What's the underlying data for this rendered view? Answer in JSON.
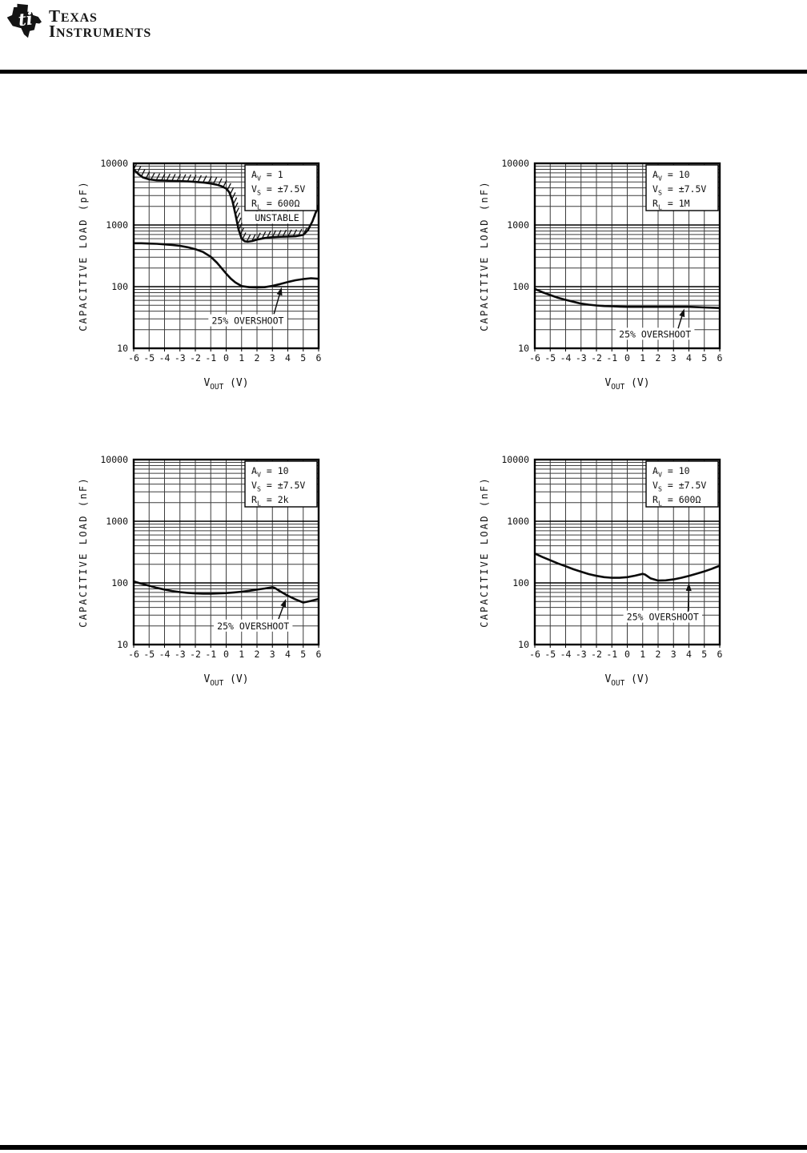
{
  "header": {
    "logo_line1": "TEXAS",
    "logo_line2": "INSTRUMENTS",
    "logo_glyph": "ti"
  },
  "colors": {
    "ink": "#111111",
    "grid_minor": "#3c3c3c",
    "grid_major": "#000000",
    "paper": "#ffffff"
  },
  "chart_data": [
    {
      "type": "line",
      "title": "",
      "ylabel": "CAPACITIVE LOAD (pF)",
      "xlabel": {
        "main": "V",
        "sub": "OUT",
        "rest": " (V)"
      },
      "xlim": [
        -6,
        6
      ],
      "ylim": [
        10,
        10000
      ],
      "yscale": "log",
      "x_ticks": [
        -6,
        -5,
        -4,
        -3,
        -2,
        -1,
        0,
        1,
        2,
        3,
        4,
        5,
        6
      ],
      "y_ticks": [
        10,
        100,
        1000,
        10000
      ],
      "grid": "full log grid on",
      "legend_position": "boxed, top-right inside plot",
      "conditions": [
        {
          "main": "A",
          "sub": "V",
          "rest": " = 1"
        },
        {
          "main": "V",
          "sub": "S",
          "rest": " = ±7.5V"
        },
        {
          "main": "R",
          "sub": "L",
          "rest": " = 600Ω"
        }
      ],
      "series": [
        {
          "name": "stability boundary (unstable above, hatched)",
          "hatched": true,
          "points": [
            [
              -6,
              8000
            ],
            [
              -5.7,
              6700
            ],
            [
              -5.4,
              5900
            ],
            [
              -5,
              5500
            ],
            [
              -4.5,
              5300
            ],
            [
              -4,
              5250
            ],
            [
              -3.5,
              5200
            ],
            [
              -3,
              5150
            ],
            [
              -2.5,
              5100
            ],
            [
              -2,
              5000
            ],
            [
              -1.5,
              4900
            ],
            [
              -1,
              4700
            ],
            [
              -0.6,
              4500
            ],
            [
              -0.3,
              4250
            ],
            [
              0,
              3900
            ],
            [
              0.2,
              3400
            ],
            [
              0.4,
              2500
            ],
            [
              0.6,
              1500
            ],
            [
              0.8,
              850
            ],
            [
              1,
              600
            ],
            [
              1.2,
              545
            ],
            [
              1.4,
              535
            ],
            [
              1.7,
              550
            ],
            [
              2,
              580
            ],
            [
              2.5,
              615
            ],
            [
              3,
              635
            ],
            [
              3.5,
              645
            ],
            [
              4,
              650
            ],
            [
              4.5,
              655
            ],
            [
              5,
              690
            ],
            [
              5.3,
              820
            ],
            [
              5.6,
              1150
            ],
            [
              5.85,
              1700
            ],
            [
              6,
              2100
            ]
          ]
        },
        {
          "name": "25% overshoot",
          "hatched": false,
          "points": [
            [
              -6,
              505
            ],
            [
              -5.5,
              505
            ],
            [
              -5,
              500
            ],
            [
              -4.5,
              495
            ],
            [
              -4,
              485
            ],
            [
              -3.5,
              475
            ],
            [
              -3,
              460
            ],
            [
              -2.5,
              435
            ],
            [
              -2,
              405
            ],
            [
              -1.5,
              365
            ],
            [
              -1,
              305
            ],
            [
              -0.6,
              245
            ],
            [
              -0.3,
              200
            ],
            [
              0,
              163
            ],
            [
              0.3,
              135
            ],
            [
              0.6,
              117
            ],
            [
              1,
              102
            ],
            [
              1.5,
              98
            ],
            [
              2,
              97
            ],
            [
              2.5,
              98
            ],
            [
              3,
              103
            ],
            [
              3.5,
              110
            ],
            [
              4,
              119
            ],
            [
              4.5,
              127
            ],
            [
              5,
              133
            ],
            [
              5.5,
              137
            ],
            [
              6,
              134
            ]
          ]
        }
      ],
      "labels": [
        {
          "text": "UNSTABLE",
          "x": 3.3,
          "y": 1300
        },
        {
          "text": "25% OVERSHOOT",
          "x": 1.4,
          "y": 28
        }
      ],
      "arrow": {
        "x1": 3.1,
        "y1": 36,
        "x2": 3.6,
        "y2": 98
      }
    },
    {
      "type": "line",
      "title": "",
      "ylabel": "CAPACITIVE LOAD (nF)",
      "xlabel": {
        "main": "V",
        "sub": "OUT",
        "rest": " (V)"
      },
      "xlim": [
        -6,
        6
      ],
      "ylim": [
        10,
        10000
      ],
      "yscale": "log",
      "x_ticks": [
        -6,
        -5,
        -4,
        -3,
        -2,
        -1,
        0,
        1,
        2,
        3,
        4,
        5,
        6
      ],
      "y_ticks": [
        10,
        100,
        1000,
        10000
      ],
      "grid": "full log grid on",
      "legend_position": "boxed, top-right inside plot",
      "conditions": [
        {
          "main": "A",
          "sub": "V",
          "rest": " = 10"
        },
        {
          "main": "V",
          "sub": "S",
          "rest": " = ±7.5V"
        },
        {
          "main": "R",
          "sub": "L",
          "rest": " = 1M"
        }
      ],
      "series": [
        {
          "name": "25% overshoot",
          "hatched": false,
          "points": [
            [
              -6,
              92
            ],
            [
              -5.5,
              81
            ],
            [
              -5,
              73
            ],
            [
              -4.5,
              66
            ],
            [
              -4,
              61
            ],
            [
              -3.5,
              57
            ],
            [
              -3,
              53
            ],
            [
              -2.5,
              51
            ],
            [
              -2,
              49.5
            ],
            [
              -1.5,
              48.5
            ],
            [
              -1,
              48
            ],
            [
              -0.5,
              47.5
            ],
            [
              0,
              47
            ],
            [
              0.5,
              47
            ],
            [
              1,
              47
            ],
            [
              1.5,
              47
            ],
            [
              2,
              47
            ],
            [
              2.5,
              47
            ],
            [
              3,
              47
            ],
            [
              3.5,
              47
            ],
            [
              4,
              47
            ],
            [
              4.5,
              46.5
            ],
            [
              5,
              46
            ],
            [
              5.5,
              45.5
            ],
            [
              6,
              45
            ]
          ]
        }
      ],
      "labels": [
        {
          "text": "25% OVERSHOOT",
          "x": 1.8,
          "y": 17
        }
      ],
      "arrow": {
        "x1": 3.3,
        "y1": 21,
        "x2": 3.7,
        "y2": 44
      }
    },
    {
      "type": "line",
      "title": "",
      "ylabel": "CAPACITIVE LOAD (nF)",
      "xlabel": {
        "main": "V",
        "sub": "OUT",
        "rest": " (V)"
      },
      "xlim": [
        -6,
        6
      ],
      "ylim": [
        10,
        10000
      ],
      "yscale": "log",
      "x_ticks": [
        -6,
        -5,
        -4,
        -3,
        -2,
        -1,
        0,
        1,
        2,
        3,
        4,
        5,
        6
      ],
      "y_ticks": [
        10,
        100,
        1000,
        10000
      ],
      "grid": "full log grid on",
      "legend_position": "boxed, top-right inside plot",
      "conditions": [
        {
          "main": "A",
          "sub": "V",
          "rest": " = 10"
        },
        {
          "main": "V",
          "sub": "S",
          "rest": " = ±7.5V"
        },
        {
          "main": "R",
          "sub": "L",
          "rest": " = 2k"
        }
      ],
      "series": [
        {
          "name": "25% overshoot",
          "hatched": false,
          "points": [
            [
              -6,
              106
            ],
            [
              -5.5,
              97
            ],
            [
              -5,
              90
            ],
            [
              -4.5,
              83
            ],
            [
              -4,
              78
            ],
            [
              -3.5,
              74
            ],
            [
              -3,
              71
            ],
            [
              -2.5,
              69
            ],
            [
              -2,
              67.5
            ],
            [
              -1.5,
              67
            ],
            [
              -1,
              67
            ],
            [
              -0.5,
              67.5
            ],
            [
              0,
              68.5
            ],
            [
              0.5,
              70
            ],
            [
              1,
              72
            ],
            [
              1.5,
              74.5
            ],
            [
              2,
              78
            ],
            [
              2.5,
              81
            ],
            [
              3,
              85
            ],
            [
              3.15,
              83
            ],
            [
              3.5,
              73
            ],
            [
              4,
              62
            ],
            [
              4.5,
              54
            ],
            [
              5,
              48
            ],
            [
              5.5,
              51
            ],
            [
              6,
              55
            ]
          ]
        }
      ],
      "labels": [
        {
          "text": "25% OVERSHOOT",
          "x": 1.75,
          "y": 20
        }
      ],
      "arrow": {
        "x1": 3.4,
        "y1": 26,
        "x2": 3.88,
        "y2": 55
      }
    },
    {
      "type": "line",
      "title": "",
      "ylabel": "CAPACITIVE LOAD (nF)",
      "xlabel": {
        "main": "V",
        "sub": "OUT",
        "rest": " (V)"
      },
      "xlim": [
        -6,
        6
      ],
      "ylim": [
        10,
        10000
      ],
      "yscale": "log",
      "x_ticks": [
        -6,
        -5,
        -4,
        -3,
        -2,
        -1,
        0,
        1,
        2,
        3,
        4,
        5,
        6
      ],
      "y_ticks": [
        10,
        100,
        1000,
        10000
      ],
      "grid": "full log grid on",
      "legend_position": "boxed, top-right inside plot",
      "conditions": [
        {
          "main": "A",
          "sub": "V",
          "rest": " = 10"
        },
        {
          "main": "V",
          "sub": "S",
          "rest": " = ±7.5V"
        },
        {
          "main": "R",
          "sub": "L",
          "rest": " = 600Ω"
        }
      ],
      "series": [
        {
          "name": "25% overshoot",
          "hatched": false,
          "points": [
            [
              -6,
              300
            ],
            [
              -5.5,
              263
            ],
            [
              -5,
              233
            ],
            [
              -4.5,
              207
            ],
            [
              -4,
              186
            ],
            [
              -3.5,
              167
            ],
            [
              -3,
              152
            ],
            [
              -2.5,
              139
            ],
            [
              -2,
              130
            ],
            [
              -1.5,
              124
            ],
            [
              -1,
              121
            ],
            [
              -0.5,
              121
            ],
            [
              0,
              124
            ],
            [
              0.5,
              131
            ],
            [
              1,
              140
            ],
            [
              1.15,
              137
            ],
            [
              1.5,
              119
            ],
            [
              2,
              109
            ],
            [
              2.5,
              110
            ],
            [
              3,
              114
            ],
            [
              3.5,
              121
            ],
            [
              4,
              130
            ],
            [
              4.5,
              141
            ],
            [
              5,
              154
            ],
            [
              5.5,
              170
            ],
            [
              6,
              190
            ]
          ]
        }
      ],
      "labels": [
        {
          "text": "25% OVERSHOOT",
          "x": 2.3,
          "y": 28
        }
      ],
      "arrow": {
        "x1": 3.95,
        "y1": 34,
        "x2": 4.0,
        "y2": 100
      }
    }
  ]
}
